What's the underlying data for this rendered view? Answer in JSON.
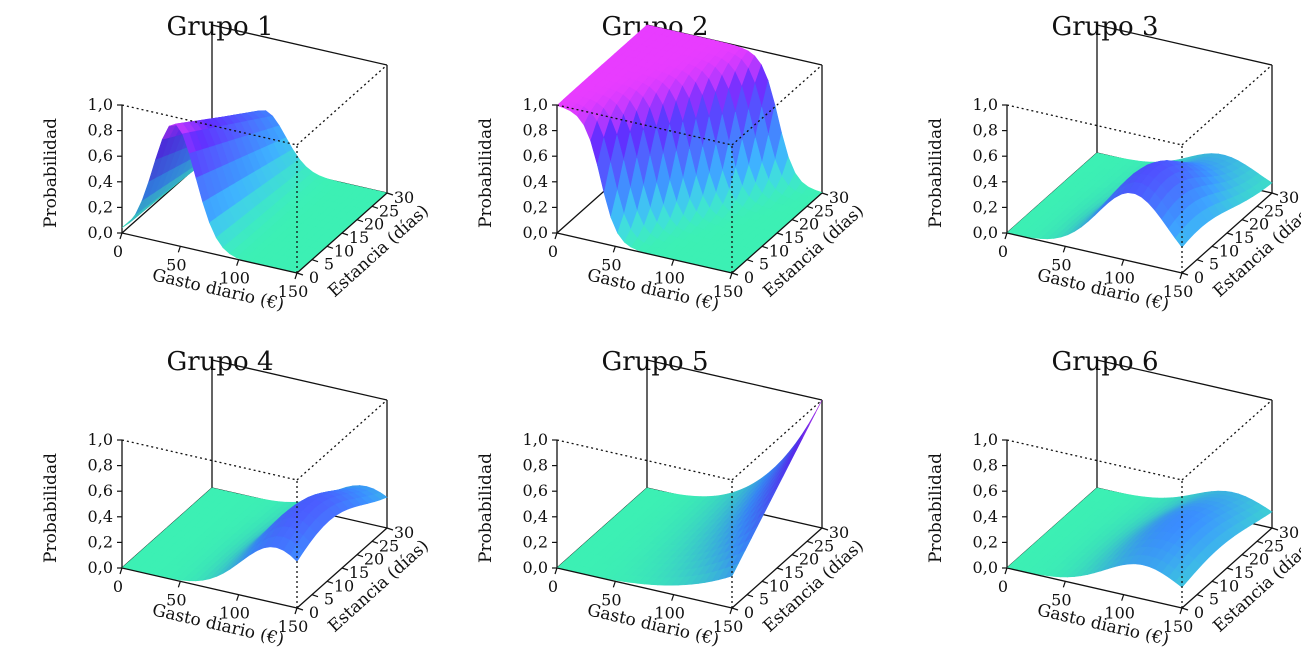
{
  "chart_data": [
    {
      "type": "surface",
      "title": "Grupo 1",
      "surface_shape": "ridge-peak-low-gasto",
      "xlabel": "Gasto diario (€)",
      "ylabel": "Estancia (días)",
      "zlabel": "Probabilidad",
      "xticks": [
        "0",
        "50",
        "100",
        "150"
      ],
      "yticks": [
        "0",
        "5",
        "10",
        "15",
        "20",
        "25",
        "30"
      ],
      "zticks": [
        "0,0",
        "0,2",
        "0,4",
        "0,6",
        "0,8",
        "1,0"
      ],
      "xlim": [
        0,
        150
      ],
      "ylim": [
        0,
        30
      ],
      "zlim": [
        0,
        1
      ],
      "peak_probability": 0.95
    },
    {
      "type": "surface",
      "title": "Grupo 2",
      "surface_shape": "high-at-low-gasto-drop",
      "xlabel": "Gasto diario (€)",
      "ylabel": "Estancia (días)",
      "zlabel": "Probabilidad",
      "xticks": [
        "0",
        "50",
        "100",
        "150"
      ],
      "yticks": [
        "0",
        "5",
        "10",
        "15",
        "20",
        "25",
        "30"
      ],
      "zticks": [
        "0,0",
        "0,2",
        "0,4",
        "0,6",
        "0,8",
        "1,0"
      ],
      "xlim": [
        0,
        150
      ],
      "ylim": [
        0,
        30
      ],
      "zlim": [
        0,
        1
      ],
      "peak_probability": 1.0
    },
    {
      "type": "surface",
      "title": "Grupo 3",
      "surface_shape": "hump-mid-gasto",
      "xlabel": "Gasto diario (€)",
      "ylabel": "Estancia (días)",
      "zlabel": "Probabilidad",
      "xticks": [
        "0",
        "50",
        "100",
        "150"
      ],
      "yticks": [
        "0",
        "5",
        "10",
        "15",
        "20",
        "25",
        "30"
      ],
      "zticks": [
        "0,0",
        "0,2",
        "0,4",
        "0,6",
        "0,8",
        "1,0"
      ],
      "xlim": [
        0,
        150
      ],
      "ylim": [
        0,
        30
      ],
      "zlim": [
        0,
        1
      ],
      "peak_probability": 0.6
    },
    {
      "type": "surface",
      "title": "Grupo 4",
      "surface_shape": "hump-high-gasto",
      "xlabel": "Gasto diario (€)",
      "ylabel": "Estancia (días)",
      "zlabel": "Probabilidad",
      "xticks": [
        "0",
        "50",
        "100",
        "150"
      ],
      "yticks": [
        "0",
        "5",
        "10",
        "15",
        "20",
        "25",
        "30"
      ],
      "zticks": [
        "0,0",
        "0,2",
        "0,4",
        "0,6",
        "0,8",
        "1,0"
      ],
      "xlim": [
        0,
        150
      ],
      "ylim": [
        0,
        30
      ],
      "zlim": [
        0,
        1
      ],
      "peak_probability": 0.55
    },
    {
      "type": "surface",
      "title": "Grupo 5",
      "surface_shape": "rise-to-max-gasto",
      "xlabel": "Gasto diario (€)",
      "ylabel": "Estancia (días)",
      "zlabel": "Probabilidad",
      "xticks": [
        "0",
        "50",
        "100",
        "150"
      ],
      "yticks": [
        "0",
        "5",
        "10",
        "15",
        "20",
        "25",
        "30"
      ],
      "zticks": [
        "0,0",
        "0,2",
        "0,4",
        "0,6",
        "0,8",
        "1,0"
      ],
      "xlim": [
        0,
        150
      ],
      "ylim": [
        0,
        30
      ],
      "zlim": [
        0,
        1
      ],
      "peak_probability": 1.0
    },
    {
      "type": "surface",
      "title": "Grupo 6",
      "surface_shape": "low-hump",
      "xlabel": "Gasto diario (€)",
      "ylabel": "Estancia (días)",
      "zlabel": "Probabilidad",
      "xticks": [
        "0",
        "50",
        "100",
        "150"
      ],
      "yticks": [
        "0",
        "5",
        "10",
        "15",
        "20",
        "25",
        "30"
      ],
      "zticks": [
        "0,0",
        "0,2",
        "0,4",
        "0,6",
        "0,8",
        "1,0"
      ],
      "xlim": [
        0,
        150
      ],
      "ylim": [
        0,
        30
      ],
      "zlim": [
        0,
        1
      ],
      "peak_probability": 0.35
    }
  ],
  "colors": {
    "low": "#3cf0b4",
    "mid": "#3a8bff",
    "high": "#5b2bff",
    "top": "#e83cff"
  }
}
